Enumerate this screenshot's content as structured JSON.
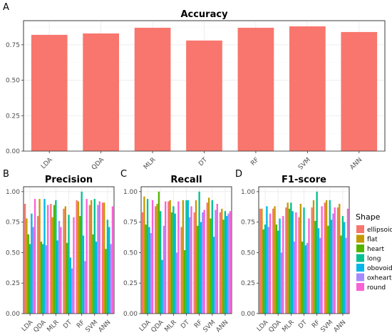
{
  "tags": [
    "A",
    "B",
    "C",
    "D"
  ],
  "colors": {
    "ellipsoid": "#F8766D",
    "flat": "#C49A00",
    "heart": "#53B400",
    "long": "#00C094",
    "obovoid": "#00B6EB",
    "oxheart": "#A58AFF",
    "round": "#FB61D7"
  },
  "chart_data": [
    {
      "type": "bar",
      "title": "Accuracy",
      "categories": [
        "LDA",
        "QDA",
        "MLR",
        "DT",
        "RF",
        "SVM",
        "ANN"
      ],
      "values": [
        0.82,
        0.83,
        0.87,
        0.78,
        0.87,
        0.88,
        0.84
      ],
      "yticks": [
        "0.00",
        "0.25",
        "0.50",
        "0.75"
      ],
      "ylim": [
        0,
        0.92
      ],
      "bar_color": "#F8766D"
    },
    {
      "type": "bar",
      "title": "Precision",
      "categories": [
        "LDA",
        "QDA",
        "MLR",
        "DT",
        "RF",
        "SVM",
        "ANN"
      ],
      "yticks": [
        "0.00",
        "0.25",
        "0.50",
        "0.75",
        "1.00"
      ],
      "ylim": [
        0,
        1.04
      ],
      "legend_title": "Shape",
      "series": [
        {
          "name": "ellipsoid",
          "values": [
            0.9,
            0.8,
            0.9,
            0.86,
            0.93,
            0.89,
            0.91
          ]
        },
        {
          "name": "flat",
          "values": [
            0.78,
            0.94,
            0.79,
            0.88,
            0.92,
            0.93,
            0.91
          ]
        },
        {
          "name": "heart",
          "values": [
            0.65,
            0.59,
            0.89,
            0.58,
            0.8,
            0.65,
            0.53
          ]
        },
        {
          "name": "long",
          "values": [
            0.57,
            0.57,
            0.93,
            0.81,
            1.0,
            0.94,
            0.77
          ]
        },
        {
          "name": "obovoid",
          "values": [
            0.82,
            0.94,
            0.6,
            0.46,
            0.64,
            0.59,
            0.71
          ]
        },
        {
          "name": "oxheart",
          "values": [
            0.71,
            0.56,
            0.76,
            0.37,
            0.43,
            0.89,
            0.57
          ]
        },
        {
          "name": "round",
          "values": [
            0.94,
            0.89,
            0.71,
            0.79,
            0.94,
            0.92,
            0.88
          ]
        }
      ]
    },
    {
      "type": "bar",
      "title": "Recall",
      "categories": [
        "LDA",
        "QDA",
        "MLR",
        "DT",
        "RF",
        "SVM",
        "ANN"
      ],
      "yticks": [
        "0.00",
        "0.25",
        "0.50",
        "0.75",
        "1.00"
      ],
      "ylim": [
        0,
        1.04
      ],
      "series": [
        {
          "name": "ellipsoid",
          "values": [
            0.83,
            0.88,
            0.92,
            0.71,
            0.83,
            0.91,
            0.83
          ]
        },
        {
          "name": "flat",
          "values": [
            0.96,
            0.9,
            0.93,
            0.93,
            0.93,
            0.95,
            0.86
          ]
        },
        {
          "name": "heart",
          "values": [
            0.73,
            1.0,
            0.83,
            0.52,
            0.72,
            0.78,
            0.77
          ]
        },
        {
          "name": "long",
          "values": [
            0.94,
            0.84,
            0.88,
            0.93,
            1.0,
            0.93,
            0.84
          ]
        },
        {
          "name": "obovoid",
          "values": [
            0.71,
            0.44,
            0.82,
            0.93,
            0.75,
            0.63,
            0.8
          ]
        },
        {
          "name": "oxheart",
          "values": [
            0.66,
            0.72,
            0.5,
            0.79,
            0.83,
            0.85,
            0.82
          ]
        },
        {
          "name": "round",
          "values": [
            0.93,
            0.92,
            0.92,
            0.88,
            0.85,
            0.9,
            0.84
          ]
        }
      ]
    },
    {
      "type": "bar",
      "title": "F1-score",
      "categories": [
        "LDA",
        "QDA",
        "MLR",
        "DT",
        "RF",
        "SVM",
        "ANN"
      ],
      "yticks": [
        "0.00",
        "0.25",
        "0.50",
        "0.75",
        "1.00"
      ],
      "ylim": [
        0,
        1.04
      ],
      "series": [
        {
          "name": "ellipsoid",
          "values": [
            0.86,
            0.86,
            0.87,
            0.79,
            0.87,
            0.91,
            0.87
          ]
        },
        {
          "name": "flat",
          "values": [
            0.86,
            0.88,
            0.91,
            0.9,
            0.93,
            0.93,
            0.9
          ]
        },
        {
          "name": "heart",
          "values": [
            0.69,
            0.73,
            0.86,
            0.59,
            0.76,
            0.72,
            0.64
          ]
        },
        {
          "name": "long",
          "values": [
            0.73,
            0.68,
            0.91,
            0.87,
            1.0,
            0.93,
            0.8
          ]
        },
        {
          "name": "obovoid",
          "values": [
            0.88,
            0.78,
            0.84,
            0.56,
            0.7,
            0.77,
            0.75
          ]
        },
        {
          "name": "oxheart",
          "values": [
            0.71,
            0.5,
            0.59,
            0.58,
            0.62,
            0.82,
            0.62
          ]
        },
        {
          "name": "round",
          "values": [
            0.82,
            0.8,
            0.83,
            0.78,
            0.88,
            0.87,
            0.86
          ]
        }
      ]
    }
  ]
}
